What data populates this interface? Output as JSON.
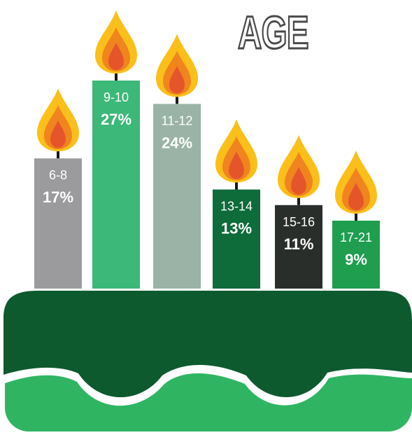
{
  "title": "AGE",
  "chart_data": {
    "type": "bar",
    "categories": [
      "6-8",
      "9-10",
      "11-12",
      "13-14",
      "15-16",
      "17-21"
    ],
    "values": [
      17,
      27,
      24,
      13,
      11,
      9
    ],
    "value_labels": [
      "17%",
      "27%",
      "24%",
      "13%",
      "11%",
      "9%"
    ],
    "colors": [
      "#9b9b9d",
      "#3cb878",
      "#9ab3a6",
      "#0e6b3a",
      "#2a2e2b",
      "#1e9e4e"
    ],
    "ylim": [
      0,
      27
    ]
  },
  "cake": {
    "frosting_color": "#0d5a2e",
    "base_color": "#2fb562"
  },
  "flame": {
    "outer_color": "#fbbf1a",
    "middle_color": "#f0841f",
    "inner_color": "#e5552a"
  }
}
